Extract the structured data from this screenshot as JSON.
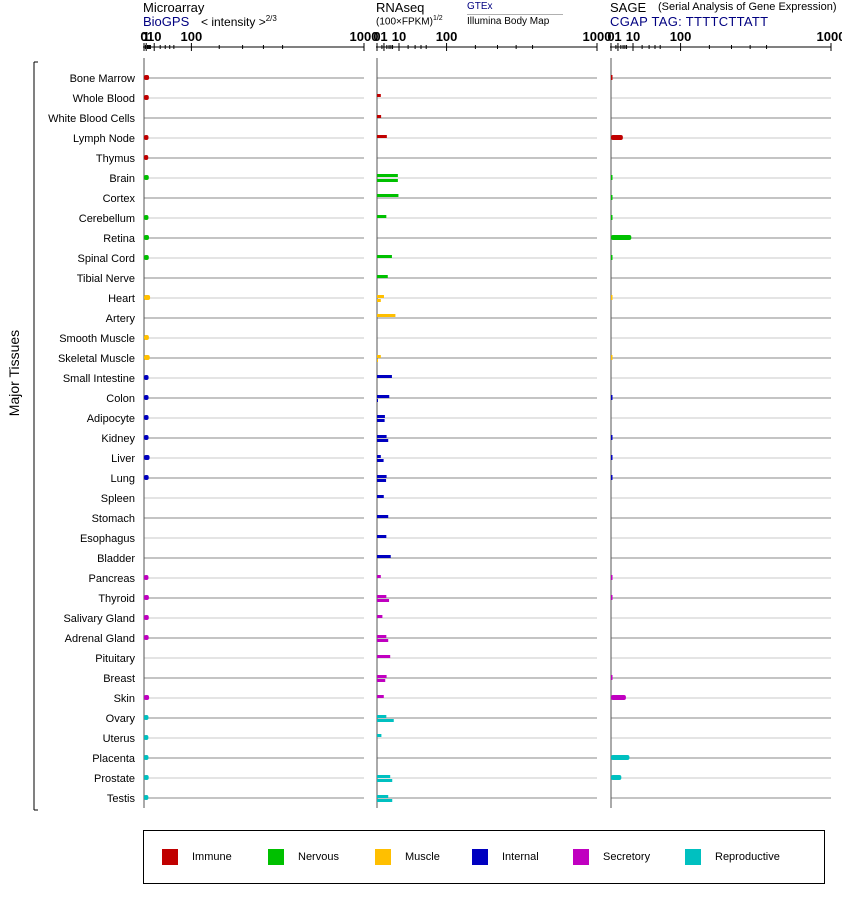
{
  "headers": {
    "microarray": {
      "title": "Microarray",
      "source": "BioGPS",
      "unit_prefix": "< intensity >",
      "unit_exp": "2/3"
    },
    "rnaseq": {
      "title": "RNAseq",
      "unit": "(100×FPKM)",
      "unit_exp": "1/2",
      "source_a": "GTEx",
      "source_b": "Illumina Body Map"
    },
    "sage": {
      "title": "SAGE",
      "subtitle": "(Serial Analysis of Gene Expression)",
      "tag": "CGAP TAG: TTTTCTTATT"
    }
  },
  "y_axis_label": "Major Tissues",
  "colors": {
    "immune": "#c00000",
    "nervous": "#00c000",
    "muscle": "#ffbf00",
    "internal": "#0000c0",
    "secretory": "#c000c0",
    "reproductive": "#00c0c0",
    "sep_dark": "#888888",
    "sep_light": "#c8c8c8",
    "gtex_color": "#000080",
    "biogps_color": "#000080"
  },
  "legend": [
    {
      "key": "immune",
      "label": "Immune"
    },
    {
      "key": "nervous",
      "label": "Nervous"
    },
    {
      "key": "muscle",
      "label": "Muscle"
    },
    {
      "key": "internal",
      "label": "Internal"
    },
    {
      "key": "secretory",
      "label": "Secretory"
    },
    {
      "key": "reproductive",
      "label": "Reproductive"
    }
  ],
  "chart_data": [
    {
      "type": "bar",
      "title": "Microarray",
      "xscale": "power-2/3",
      "xlim": [
        0,
        1000
      ],
      "xticks": [
        0,
        1,
        10,
        100,
        1000
      ],
      "categories": [
        "Bone Marrow",
        "Whole Blood",
        "White Blood Cells",
        "Lymph Node",
        "Thymus",
        "Brain",
        "Cortex",
        "Cerebellum",
        "Retina",
        "Spinal Cord",
        "Tibial Nerve",
        "Heart",
        "Artery",
        "Smooth Muscle",
        "Skeletal Muscle",
        "Small Intestine",
        "Colon",
        "Adipocyte",
        "Kidney",
        "Liver",
        "Lung",
        "Spleen",
        "Stomach",
        "Esophagus",
        "Bladder",
        "Pancreas",
        "Thyroid",
        "Salivary Gland",
        "Adrenal Gland",
        "Pituitary",
        "Breast",
        "Skin",
        "Ovary",
        "Uterus",
        "Placenta",
        "Prostate",
        "Testis"
      ],
      "groups": [
        "immune",
        "immune",
        "immune",
        "immune",
        "immune",
        "nervous",
        "nervous",
        "nervous",
        "nervous",
        "nervous",
        "nervous",
        "muscle",
        "muscle",
        "muscle",
        "muscle",
        "internal",
        "internal",
        "internal",
        "internal",
        "internal",
        "internal",
        "internal",
        "internal",
        "internal",
        "internal",
        "secretory",
        "secretory",
        "secretory",
        "secretory",
        "secretory",
        "secretory",
        "secretory",
        "reproductive",
        "reproductive",
        "reproductive",
        "reproductive",
        "reproductive"
      ],
      "values": [
        3.5,
        3.2,
        null,
        2.9,
        2.7,
        3.2,
        null,
        2.9,
        3.4,
        3.2,
        null,
        4.6,
        null,
        3.3,
        4.2,
        3.0,
        3.0,
        3.0,
        3.0,
        4.0,
        3.1,
        null,
        null,
        null,
        null,
        2.9,
        3.3,
        3.2,
        3.1,
        null,
        null,
        3.5,
        2.9,
        2.8,
        2.9,
        3.1,
        2.8
      ]
    },
    {
      "type": "bar",
      "title": "RNAseq",
      "xscale": "power-1/2",
      "xlim": [
        0,
        1000
      ],
      "xticks": [
        0,
        1,
        10,
        100,
        1000
      ],
      "series": [
        {
          "name": "GTEx",
          "values": [
            null,
            0.3,
            null,
            null,
            null,
            9.0,
            9.5,
            null,
            null,
            null,
            null,
            null,
            7.0,
            null,
            null,
            null,
            null,
            null,
            null,
            null,
            null,
            null,
            null,
            null,
            null,
            null,
            null,
            null,
            null,
            null,
            null,
            null,
            null,
            0.4,
            null,
            null,
            null
          ]
        },
        {
          "name": "Illumina Body Map",
          "values": [
            null,
            null,
            0.35,
            2.0,
            null,
            9.0,
            null,
            1.8,
            null,
            4.6,
            2.4,
            1.0,
            null,
            null,
            0.3,
            4.6,
            3.1,
            1.3,
            1.9,
            0.3,
            1.9,
            0.95,
            2.6,
            1.8,
            3.9,
            0.3,
            1.8,
            0.6,
            1.8,
            3.6,
            1.9,
            0.95,
            1.8,
            null,
            null,
            3.6,
            2.6
          ]
        },
        {
          "name": "Illumina Body Map (2)",
          "values": [
            null,
            null,
            null,
            null,
            null,
            null,
            null,
            null,
            null,
            null,
            null,
            0.3,
            null,
            null,
            0.02,
            null,
            0.02,
            1.2,
            2.6,
            0.9,
            1.7,
            null,
            null,
            null,
            null,
            null,
            3.0,
            null,
            2.6,
            null,
            1.4,
            null,
            5.8,
            null,
            null,
            4.8,
            4.8
          ]
        }
      ]
    },
    {
      "type": "bar",
      "title": "SAGE",
      "xscale": "power-1/2",
      "xlim": [
        0,
        1000
      ],
      "xticks": [
        0,
        1,
        10,
        100,
        1000
      ],
      "values": [
        0.01,
        null,
        null,
        2.9,
        null,
        0.01,
        0.01,
        0.01,
        8.5,
        0.01,
        null,
        0.005,
        null,
        null,
        0.005,
        null,
        0.02,
        null,
        0.02,
        0.02,
        0.02,
        null,
        null,
        null,
        null,
        0.02,
        0.02,
        null,
        null,
        null,
        0.02,
        4.6,
        null,
        null,
        7.0,
        2.2,
        null
      ]
    }
  ]
}
